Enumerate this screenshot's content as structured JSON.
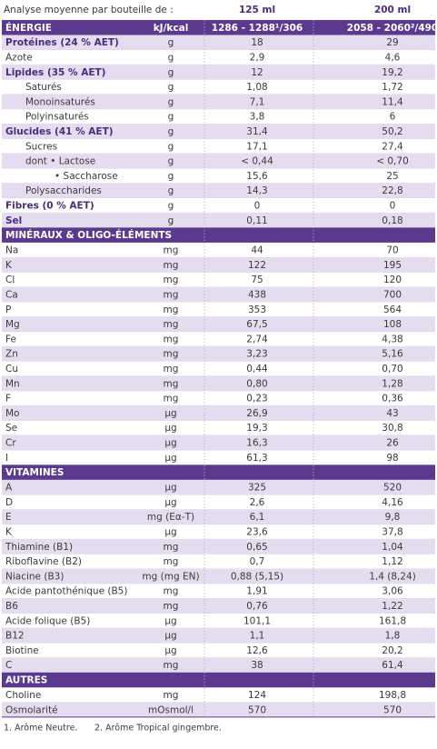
{
  "header": {
    "title": "Analyse moyenne par bouteille de :",
    "col1": "125 ml",
    "col2": "200 ml"
  },
  "sections": [
    {
      "title": "ÉNERGIE",
      "unit": "kJ/kcal",
      "v1": "1286 - 1288¹/306",
      "v2": "2058 - 2060²/490",
      "rows": [
        [
          "Protéines (24 % AET)",
          "g",
          "18",
          "29"
        ],
        [
          "Azote",
          "g",
          "2,9",
          "4,6"
        ],
        [
          "Lipides (35 % AET)",
          "g",
          "12",
          "19,2"
        ],
        [
          "Saturés",
          "g",
          "1,08",
          "1,72"
        ],
        [
          "Monoinsaturés",
          "g",
          "7,1",
          "11,4"
        ],
        [
          "Polyinsaturés",
          "g",
          "3,8",
          "6"
        ],
        [
          "Glucides (41 % AET)",
          "g",
          "31,4",
          "50,2"
        ],
        [
          "Sucres",
          "g",
          "17,1",
          "27,4"
        ],
        [
          "dont  • Lactose",
          "g",
          "< 0,44",
          "< 0,70"
        ],
        [
          "• Saccharose",
          "g",
          "15,6",
          "25"
        ],
        [
          "Polysaccharides",
          "g",
          "14,3",
          "22,8"
        ],
        [
          "Fibres (0 % AET)",
          "g",
          "0",
          "0"
        ],
        [
          "Sel",
          "g",
          "0,11",
          "0,18"
        ]
      ]
    },
    {
      "title": "MINÉRAUX & OLIGO-ÉLÉMENTS",
      "rows": [
        [
          "Na",
          "mg",
          "44",
          "70"
        ],
        [
          "K",
          "mg",
          "122",
          "195"
        ],
        [
          "Cl",
          "mg",
          "75",
          "120"
        ],
        [
          "Ca",
          "mg",
          "438",
          "700"
        ],
        [
          "P",
          "mg",
          "353",
          "564"
        ],
        [
          "Mg",
          "mg",
          "67,5",
          "108"
        ],
        [
          "Fe",
          "mg",
          "2,74",
          "4,38"
        ],
        [
          "Zn",
          "mg",
          "3,23",
          "5,16"
        ],
        [
          "Cu",
          "mg",
          "0,44",
          "0,70"
        ],
        [
          "Mn",
          "mg",
          "0,80",
          "1,28"
        ],
        [
          "F",
          "mg",
          "0,23",
          "0,36"
        ],
        [
          "Mo",
          "µg",
          "26,9",
          "43"
        ],
        [
          "Se",
          "µg",
          "19,3",
          "30,8"
        ],
        [
          "Cr",
          "µg",
          "16,3",
          "26"
        ],
        [
          "I",
          "µg",
          "61,3",
          "98"
        ]
      ]
    },
    {
      "title": "VITAMINES",
      "rows": [
        [
          "A",
          "µg",
          "325",
          "520"
        ],
        [
          "D",
          "µg",
          "2,6",
          "4,16"
        ],
        [
          "E",
          "mg (Eα-T)",
          "6,1",
          "9,8"
        ],
        [
          "K",
          "µg",
          "23,6",
          "37,8"
        ],
        [
          "Thiamine (B1)",
          "mg",
          "0,65",
          "1,04"
        ],
        [
          "Riboflavine (B2)",
          "mg",
          "0,7",
          "1,12"
        ],
        [
          "Niacine (B3)",
          "mg (mg EN)",
          "0,88 (5,15)",
          "1,4 (8,24)"
        ],
        [
          "Acide pantothénique (B5)",
          "mg",
          "1,91",
          "3,06"
        ],
        [
          "B6",
          "mg",
          "0,76",
          "1,22"
        ],
        [
          "Acide folique (B5)",
          "µg",
          "101,1",
          "161,8"
        ],
        [
          "B12",
          "µg",
          "1,1",
          "1,8"
        ],
        [
          "Biotine",
          "µg",
          "12,6",
          "20,2"
        ],
        [
          "C",
          "mg",
          "38",
          "61,4"
        ]
      ]
    },
    {
      "title": "AUTRES",
      "rows": [
        [
          "Choline",
          "mg",
          "124",
          "198,8"
        ],
        [
          "Osmolarité",
          "mOsmol/l",
          "570",
          "570"
        ]
      ]
    }
  ],
  "footnotes": [
    "1. Arôme Neutre.",
    "2. Arôme Tropical gingembre."
  ]
}
